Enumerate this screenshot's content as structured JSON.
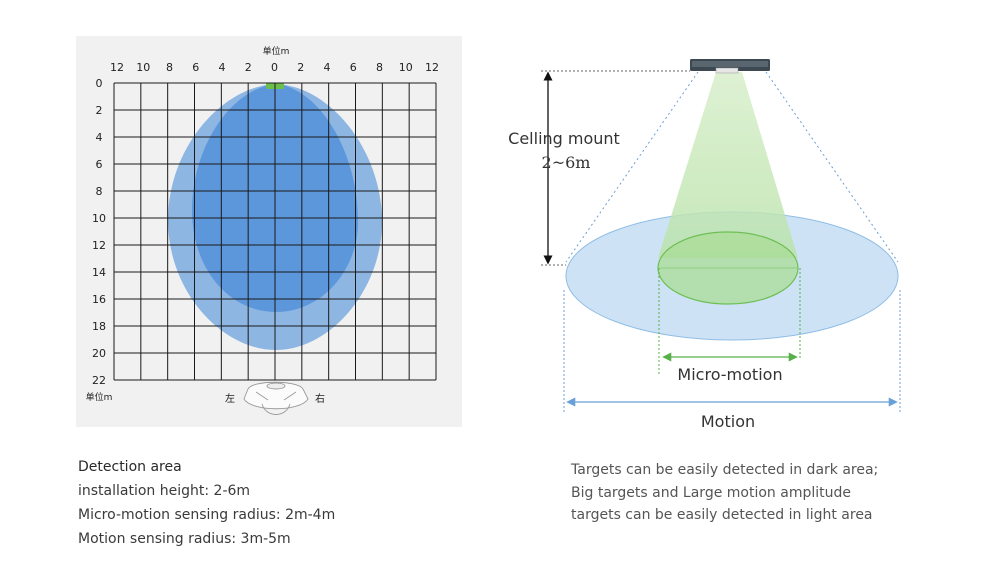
{
  "grid_panel": {
    "unit_top": "单位m",
    "unit_bottom": "单位m",
    "x_ticks": [
      "12",
      "10",
      "8",
      "6",
      "4",
      "2",
      "0",
      "2",
      "4",
      "6",
      "8",
      "10",
      "12"
    ],
    "y_ticks": [
      "0",
      "2",
      "4",
      "6",
      "8",
      "10",
      "12",
      "14",
      "16",
      "18",
      "20",
      "22"
    ],
    "left_label": "左",
    "right_label": "右",
    "panel_color": "#f1f1f1",
    "outer_zone_color": "#8db6e3",
    "inner_zone_color": "#5a95da",
    "sensor_color": "#6cc04a"
  },
  "mount_diagram": {
    "ceiling_label_line1": "Celling mount",
    "ceiling_label_line2": "2~6m",
    "micro_motion_label": "Micro-motion",
    "motion_label": "Motion",
    "motion_zone_color": "#cde3f5",
    "micro_zone_color": "#a9dc96",
    "arrow_color": "#6aa0d8",
    "micro_arrow_color": "#58b04a"
  },
  "left_caption": {
    "title": "Detection area",
    "line1": "installation height: 2-6m",
    "line2": "Micro-motion sensing radius: 2m-4m",
    "line3": "Motion sensing radius: 3m-5m"
  },
  "right_caption": {
    "line1": "Targets can be easily detected in dark area;",
    "line2": "Big targets and Large motion amplitude",
    "line3": "targets can be easily detected in light area"
  }
}
